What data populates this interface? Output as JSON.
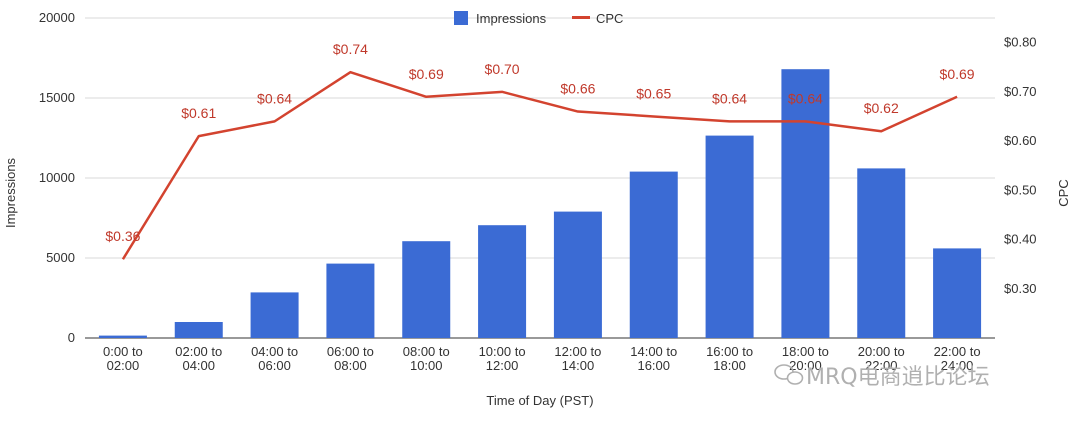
{
  "chart_data": {
    "type": "bar+line",
    "categories": [
      [
        "0:00 to",
        "02:00"
      ],
      [
        "02:00 to",
        "04:00"
      ],
      [
        "04:00 to",
        "06:00"
      ],
      [
        "06:00 to",
        "08:00"
      ],
      [
        "08:00 to",
        "10:00"
      ],
      [
        "10:00 to",
        "12:00"
      ],
      [
        "12:00 to",
        "14:00"
      ],
      [
        "14:00 to",
        "16:00"
      ],
      [
        "16:00 to",
        "18:00"
      ],
      [
        "18:00 to",
        "20:00"
      ],
      [
        "20:00 to",
        "22:00"
      ],
      [
        "22:00 to",
        "24:00"
      ]
    ],
    "series": [
      {
        "name": "Impressions",
        "type": "bar",
        "axis": "left",
        "color": "#3b6bd4",
        "values": [
          150,
          1000,
          2850,
          4650,
          6050,
          7050,
          7900,
          10400,
          12650,
          16800,
          10600,
          5600
        ]
      },
      {
        "name": "CPC",
        "type": "line",
        "axis": "right",
        "color": "#d3432f",
        "values": [
          0.36,
          0.61,
          0.64,
          0.74,
          0.69,
          0.7,
          0.66,
          0.65,
          0.64,
          0.64,
          0.62,
          0.69
        ],
        "labels": [
          "$0.36",
          "$0.61",
          "$0.64",
          "$0.74",
          "$0.69",
          "$0.70",
          "$0.66",
          "$0.65",
          "$0.64",
          "$0.64",
          "$0.62",
          "$0.69"
        ]
      }
    ],
    "xlabel": "Time of Day (PST)",
    "ylabel": "Impressions",
    "y2label": "CPC",
    "ylim": [
      0,
      20000
    ],
    "yticks": [
      "0",
      "5000",
      "10000",
      "15000",
      "20000"
    ],
    "ytick_values": [
      0,
      5000,
      10000,
      15000,
      20000
    ],
    "y2lim": [
      0.2,
      0.85
    ],
    "y2ticks": [
      "$0.30",
      "$0.40",
      "$0.50",
      "$0.60",
      "$0.70",
      "$0.80"
    ],
    "y2tick_values": [
      0.3,
      0.4,
      0.5,
      0.6,
      0.7,
      0.8
    ],
    "grid": true,
    "legend": "top-center"
  },
  "watermark": "MRQ电商逍比论坛"
}
